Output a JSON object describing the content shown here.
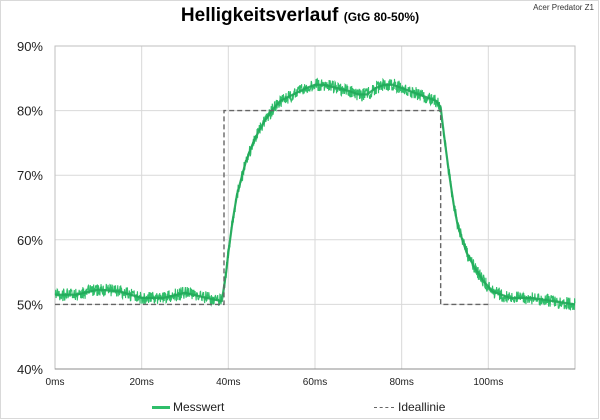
{
  "header": {
    "title": "Helligkeitsverlauf",
    "subtitle": "(GtG 80-50%)",
    "device": "Acer Predator Z1"
  },
  "chart_data": {
    "type": "line",
    "title": "Helligkeitsverlauf",
    "subtitle": "(GtG 80-50%)",
    "xlabel": "",
    "ylabel": "",
    "xlim": [
      0,
      120
    ],
    "ylim": [
      40,
      90
    ],
    "x_ticks": [
      "0ms",
      "20ms",
      "40ms",
      "60ms",
      "80ms",
      "100ms"
    ],
    "y_ticks": [
      "40%",
      "50%",
      "60%",
      "70%",
      "80%",
      "90%"
    ],
    "grid": true,
    "legend": "bottom",
    "series": [
      {
        "name": "Messwert",
        "color": "#2fbe6a",
        "style": "solid",
        "noise_amplitude": 1.0,
        "x": [
          0,
          5,
          10,
          15,
          20,
          25,
          30,
          35,
          38.5,
          39.5,
          40,
          41,
          42,
          44,
          46,
          48,
          50,
          52,
          55,
          58,
          60,
          62,
          65,
          68,
          70,
          72,
          74,
          76,
          78,
          80,
          82,
          84,
          86,
          88,
          89,
          90,
          91,
          92,
          93,
          95,
          97,
          99,
          101,
          103,
          105,
          108,
          110,
          112,
          115,
          118,
          120
        ],
        "y": [
          51.5,
          51.5,
          52.3,
          52.0,
          51.0,
          51.0,
          51.8,
          51.0,
          50.5,
          55,
          58,
          63,
          67,
          72,
          75.5,
          78,
          80,
          81.5,
          82.5,
          83.5,
          84,
          84,
          83.5,
          83,
          82.5,
          82.5,
          83.5,
          84,
          84,
          83.5,
          83,
          82.5,
          82,
          81.5,
          80.5,
          75,
          70,
          65.5,
          62,
          58,
          55.5,
          53.5,
          52,
          51.5,
          51,
          51,
          51,
          50.8,
          50.5,
          50.2,
          50.0
        ]
      },
      {
        "name": "Ideallinie",
        "color": "#666666",
        "style": "dashed",
        "x": [
          0,
          39,
          39,
          89,
          89,
          100
        ],
        "y": [
          50,
          50,
          80,
          80,
          50,
          50
        ]
      }
    ]
  },
  "legend": {
    "items": [
      {
        "label": "Messwert",
        "color": "#2fbe6a"
      },
      {
        "label": "Ideallinie",
        "color": "#666666"
      }
    ]
  }
}
